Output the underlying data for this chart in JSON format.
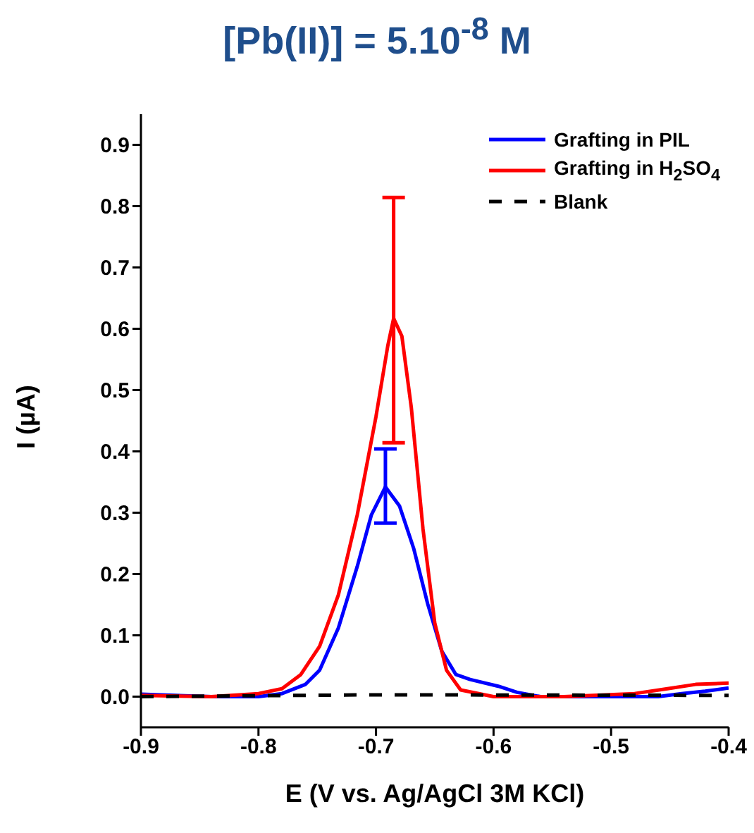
{
  "chart_data": {
    "type": "line",
    "title": "[Pb(II)] = 5.10$^{-8}$ M",
    "xlabel": "E (V vs. Ag/AgCl 3M KCl)",
    "ylabel": "I (µA)",
    "xlim": [
      -0.9,
      -0.4
    ],
    "xticks": [
      -0.9,
      -0.8,
      -0.7,
      -0.6,
      -0.5,
      -0.4
    ],
    "ylim": [
      -0.05,
      0.95
    ],
    "yticks": [
      {
        "value": 0,
        "label": "0.0"
      },
      0.1,
      0.2,
      0.3,
      0.4,
      0.5,
      0.6,
      0.7,
      0.8,
      0.9
    ],
    "grid": false,
    "legend": "top right",
    "marker": "none",
    "series": [
      {
        "name": "Grafting in PIL",
        "color": "#0000ff",
        "line_style": "solid",
        "x": [
          -0.9,
          -0.84,
          -0.8,
          -0.78,
          -0.76,
          -0.748,
          -0.732,
          -0.716,
          -0.704,
          -0.692,
          -0.68,
          -0.668,
          -0.656,
          -0.644,
          -0.632,
          -0.62,
          -0.596,
          -0.58,
          -0.56,
          -0.5,
          -0.46,
          -0.44,
          -0.42,
          -0.4
        ],
        "values": [
          0.004,
          0,
          0,
          0.005,
          0.02,
          0.043,
          0.112,
          0.212,
          0.296,
          0.342,
          0.311,
          0.242,
          0.151,
          0.074,
          0.036,
          0.028,
          0.017,
          0.007,
          0,
          0,
          0,
          0.005,
          0.009,
          0.014
        ],
        "errors": [
          null,
          null,
          null,
          null,
          null,
          null,
          null,
          null,
          null,
          [
            0.283,
            0.404
          ],
          null,
          null,
          null,
          null,
          null,
          null,
          null,
          null,
          null,
          null,
          null,
          null,
          null,
          null
        ]
      },
      {
        "name": "Grafting in H$_{2}$SO$_{4}$",
        "color": "#ff0000",
        "line_style": "solid",
        "x": [
          -0.9,
          -0.84,
          -0.8,
          -0.78,
          -0.764,
          -0.748,
          -0.732,
          -0.716,
          -0.7,
          -0.69,
          -0.685,
          -0.678,
          -0.67,
          -0.66,
          -0.65,
          -0.64,
          -0.628,
          -0.6,
          -0.54,
          -0.48,
          -0.452,
          -0.428,
          -0.4
        ],
        "values": [
          0.002,
          0,
          0.005,
          0.013,
          0.036,
          0.082,
          0.166,
          0.296,
          0.457,
          0.572,
          0.617,
          0.588,
          0.472,
          0.273,
          0.12,
          0.043,
          0.011,
          0,
          0,
          0.005,
          0.013,
          0.02,
          0.022
        ],
        "errors": [
          null,
          null,
          null,
          null,
          null,
          null,
          null,
          null,
          null,
          null,
          [
            0.414,
            0.814
          ],
          null,
          null,
          null,
          null,
          null,
          null,
          null,
          null,
          null,
          null,
          null,
          null
        ]
      },
      {
        "name": "Blank",
        "color": "#000000",
        "line_style": "dashed",
        "x": [
          -0.9,
          -0.7,
          -0.4
        ],
        "values": [
          0,
          0.003,
          0.002
        ]
      }
    ]
  }
}
